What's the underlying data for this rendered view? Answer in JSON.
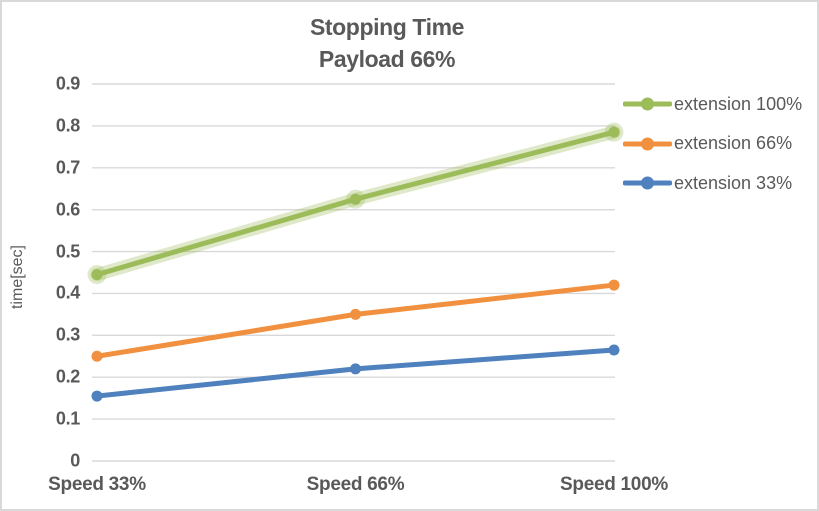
{
  "title": {
    "line1": "Stopping Time",
    "line2": "Payload 66%"
  },
  "colors": {
    "text": "#595959",
    "gridline": "#d9d9d9",
    "border": "#d9d9d9",
    "background": "#ffffff",
    "series_green": "#9cbb59",
    "series_orange": "#f1903f",
    "series_blue": "#4e81bd"
  },
  "chart_data": {
    "type": "line",
    "title": "Stopping Time",
    "subtitle": "Payload 66%",
    "xlabel": "",
    "ylabel": "time[sec]",
    "categories": [
      "Speed 33%",
      "Speed 66%",
      "Speed 100%"
    ],
    "series": [
      {
        "name": "extension 100%",
        "color": "#9cbb59",
        "glow": true,
        "values": [
          0.445,
          0.625,
          0.785
        ]
      },
      {
        "name": "extension 66%",
        "color": "#f1903f",
        "glow": false,
        "values": [
          0.25,
          0.35,
          0.42
        ]
      },
      {
        "name": "extension 33%",
        "color": "#4e81bd",
        "glow": false,
        "values": [
          0.155,
          0.22,
          0.265
        ]
      }
    ],
    "ylim": [
      0,
      0.9
    ],
    "ytick_step": 0.1,
    "ytick_labels": [
      "0",
      "0.1",
      "0.2",
      "0.3",
      "0.4",
      "0.5",
      "0.6",
      "0.7",
      "0.8",
      "0.9"
    ],
    "grid": "horizontal",
    "legend_position": "right",
    "marker": "circle"
  }
}
